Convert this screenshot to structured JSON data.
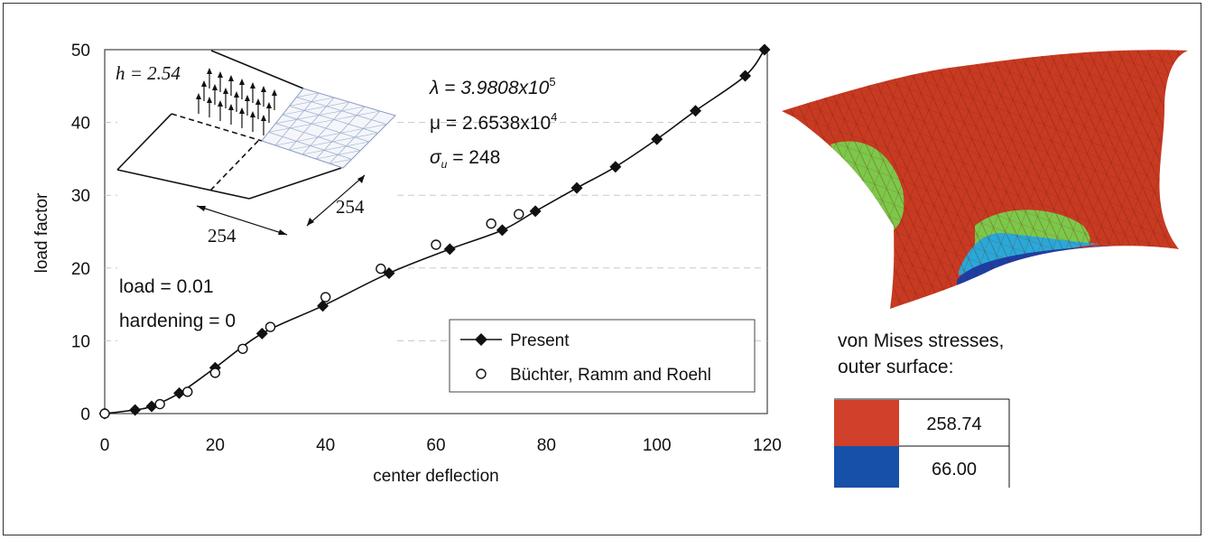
{
  "chart_data": {
    "type": "line",
    "xlabel": "center deflection",
    "ylabel": "load factor",
    "xlim": [
      0,
      120
    ],
    "ylim": [
      0,
      50
    ],
    "xticks": [
      "0",
      "20",
      "40",
      "60",
      "80",
      "100",
      "120"
    ],
    "yticks": [
      "0",
      "10",
      "20",
      "30",
      "40",
      "50"
    ],
    "grid": "horizontal dashed",
    "legend_position": "bottom-right",
    "series": [
      {
        "name": "Present",
        "marker": "filled-diamond",
        "line": true,
        "x": [
          0,
          5.5,
          8.5,
          13.5,
          20,
          28.5,
          39.5,
          51.5,
          62.5,
          72,
          78,
          85.5,
          92.5,
          100,
          107,
          116,
          119.5
        ],
        "y": [
          0,
          0.5,
          1.0,
          2.8,
          6.3,
          11.0,
          14.8,
          19.3,
          22.6,
          25.2,
          27.8,
          31.0,
          33.9,
          37.7,
          41.6,
          46.4,
          50
        ]
      },
      {
        "name": "Büchter, Ramm and Roehl",
        "marker": "open-circle",
        "line": false,
        "x": [
          0,
          10,
          15,
          20,
          25,
          30,
          40,
          50,
          60,
          70,
          75
        ],
        "y": [
          0,
          1.3,
          3.0,
          5.6,
          8.9,
          11.9,
          16.0,
          19.9,
          23.2,
          26.1,
          27.4
        ]
      }
    ]
  },
  "inset": {
    "h_label": "h = 2.54",
    "dim_width": "254",
    "dim_depth": "254"
  },
  "annotations": {
    "lambda": "λ = 3.9808x10",
    "lambda_exp": "5",
    "mu": "μ = 2.6538x10",
    "mu_exp": "4",
    "sigma": "σ",
    "sigma_sub": "u",
    "sigma_val": " = 248",
    "load": "load = 0.01",
    "hardening": "hardening = 0"
  },
  "stress_legend": {
    "title_line1": "von Mises stresses,",
    "title_line2": "outer surface:",
    "rows": [
      {
        "value": "258.74",
        "color": "#d0402a"
      },
      {
        "value": "66.00",
        "color": "#1750a8"
      }
    ]
  },
  "colors": {
    "shell_red": "#c83a22",
    "shell_green": "#7cc84a",
    "shell_cyan": "#2aa8d8",
    "shell_blue": "#1a3fa8"
  }
}
